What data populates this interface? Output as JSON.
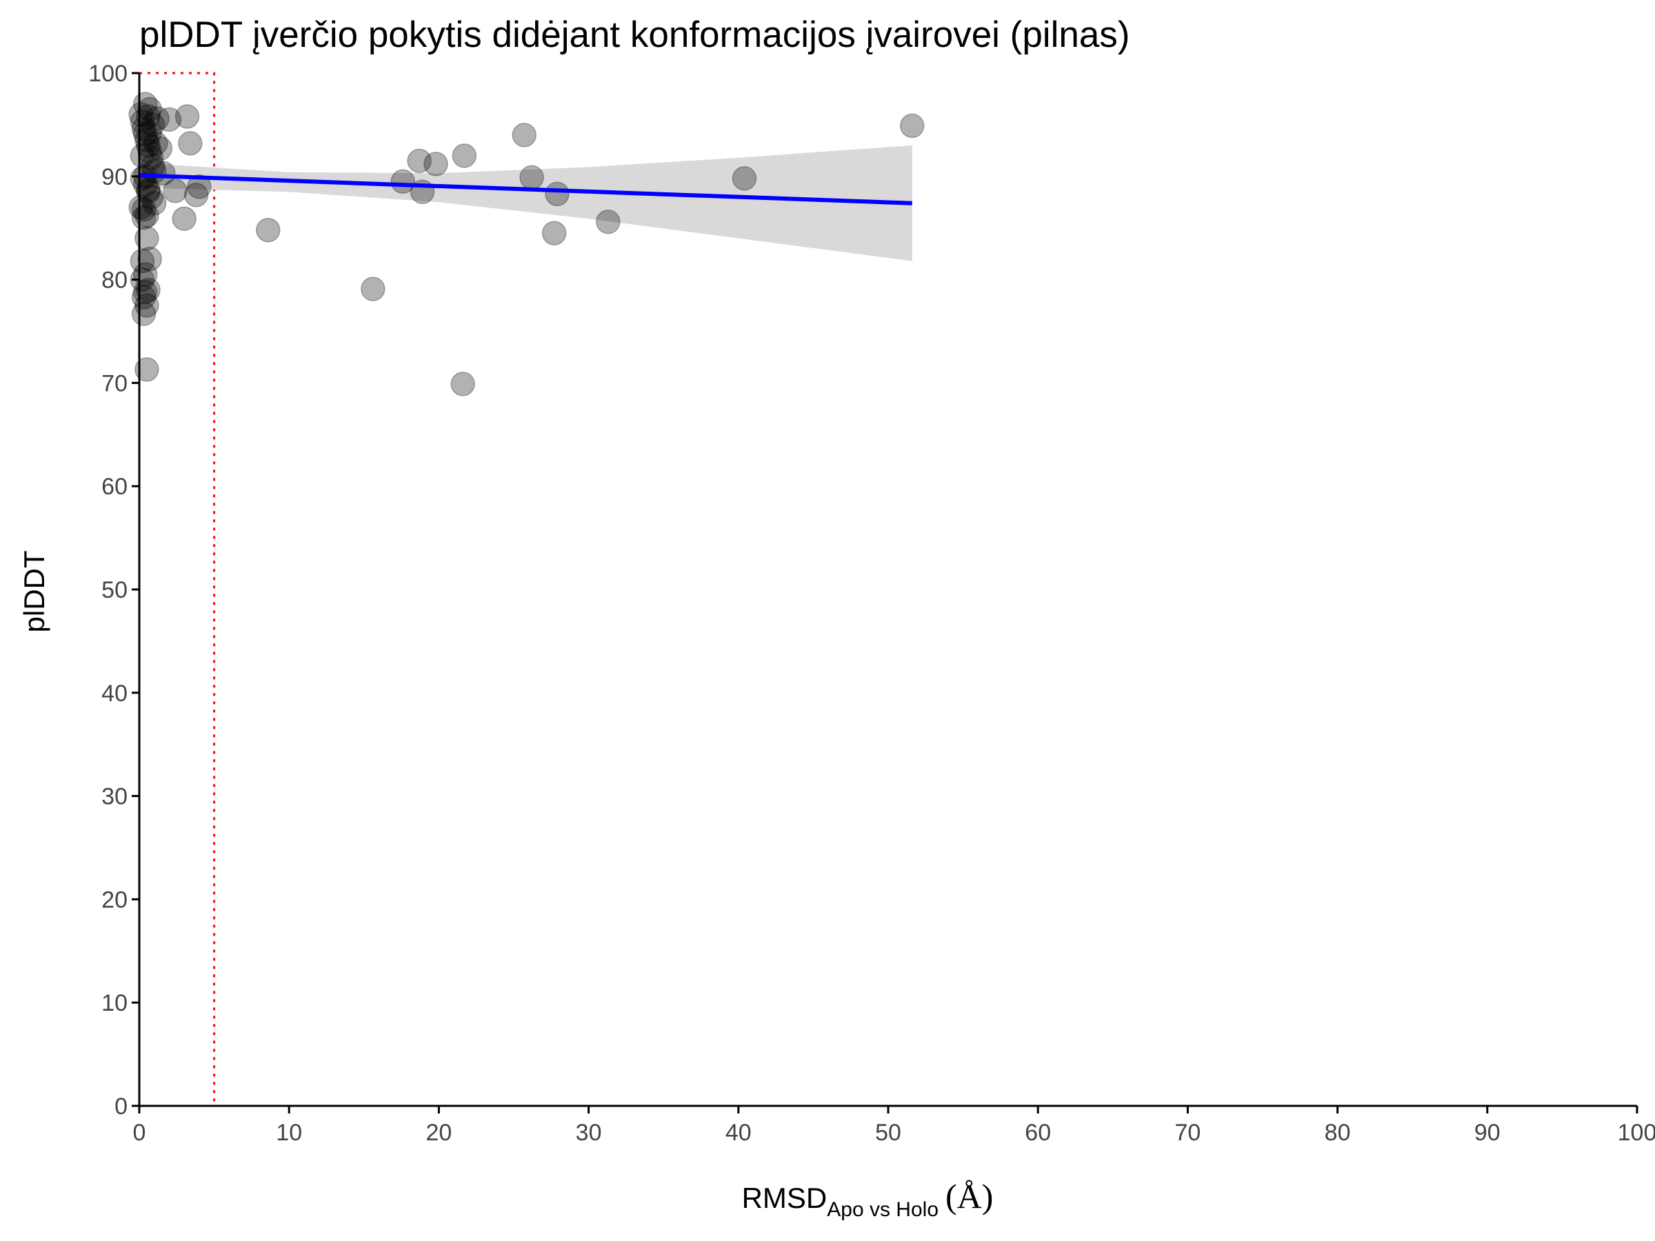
{
  "chart_data": {
    "type": "scatter",
    "title": "plDDT įverčio pokytis didėjant konformacijos įvairovei (pilnas)",
    "xlabel": {
      "main": "RMSD",
      "subscript": "Apo vs Holo",
      "unit": "(Å)"
    },
    "ylabel": "plDDT",
    "xlim": [
      0,
      100
    ],
    "ylim": [
      0,
      100
    ],
    "xticks": [
      "0",
      "10",
      "20",
      "30",
      "40",
      "50",
      "60",
      "70",
      "80",
      "90",
      "100"
    ],
    "yticks": [
      "0",
      "10",
      "20",
      "30",
      "40",
      "50",
      "60",
      "70",
      "80",
      "90",
      "100"
    ],
    "grid": false,
    "legend": "none",
    "colors": {
      "points": "#000000",
      "trend": "#0000ff",
      "ribbon": "#d9d9d9",
      "threshold_box": "#ff0000"
    },
    "threshold_box": {
      "x0": 0,
      "x1": 5,
      "y0": 0,
      "y1": 100
    },
    "trend": {
      "x": [
        0,
        51.6
      ],
      "y": [
        90.1,
        87.4
      ]
    },
    "ribbon": {
      "x": [
        0,
        10,
        20,
        30,
        40,
        51.6
      ],
      "upper": [
        91.3,
        90.4,
        90.3,
        90.9,
        91.8,
        93.0
      ],
      "lower": [
        88.9,
        88.5,
        87.5,
        85.9,
        84.0,
        81.8
      ]
    },
    "points": {
      "x": [
        0.1,
        0.2,
        0.3,
        0.4,
        0.5,
        0.6,
        0.7,
        0.8,
        0.9,
        1.0,
        0.2,
        0.4,
        0.6,
        0.8,
        1.0,
        0.3,
        0.5,
        0.7,
        0.9,
        1.1,
        0.2,
        0.4,
        0.6,
        0.1,
        0.3,
        0.5,
        0.7,
        0.2,
        0.4,
        0.6,
        0.3,
        0.5,
        0.2,
        0.4,
        0.3,
        0.5,
        0.4,
        0.6,
        0.7,
        1.2,
        1.4,
        1.6,
        2.0,
        2.4,
        3.0,
        3.2,
        3.4,
        3.8,
        4.0,
        8.6,
        15.6,
        17.6,
        18.7,
        18.9,
        19.8,
        21.6,
        21.7,
        25.7,
        26.2,
        27.7,
        27.9,
        31.3,
        40.4,
        51.6
      ],
      "y": [
        96.0,
        95.3,
        94.6,
        94.1,
        93.5,
        93.0,
        92.4,
        91.8,
        91.0,
        90.5,
        89.8,
        89.2,
        88.7,
        88.0,
        87.4,
        86.8,
        86.2,
        96.5,
        95.0,
        93.2,
        92.0,
        90.0,
        88.5,
        87.0,
        86.0,
        84.0,
        82.0,
        81.8,
        80.5,
        79.0,
        78.3,
        77.5,
        80.0,
        78.8,
        76.7,
        71.3,
        97.0,
        95.8,
        94.2,
        95.6,
        92.7,
        90.3,
        95.5,
        88.6,
        85.9,
        95.8,
        93.2,
        88.2,
        89.0,
        84.8,
        79.1,
        89.5,
        91.5,
        88.5,
        91.2,
        69.9,
        92.0,
        94.0,
        89.9,
        84.5,
        88.3,
        85.6,
        89.8,
        94.9
      ]
    }
  }
}
